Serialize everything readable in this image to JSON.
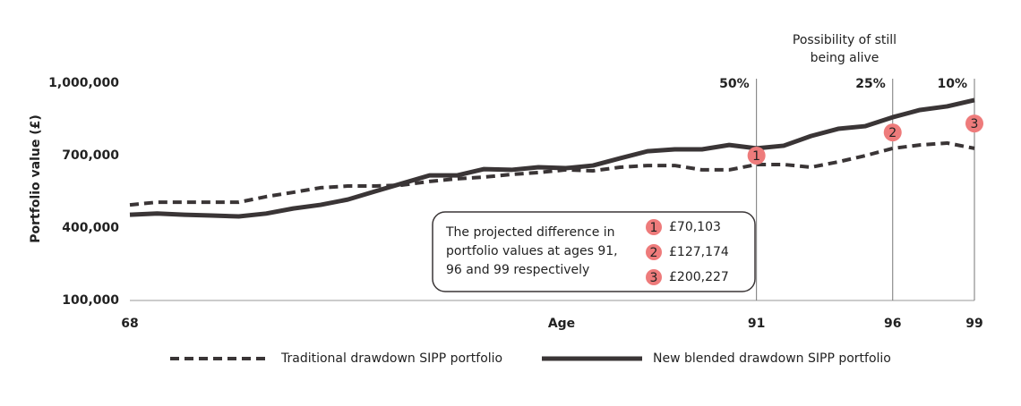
{
  "chart_data": {
    "type": "line",
    "y_label": "Portfolio value (£)",
    "x_label": "Age",
    "x": [
      68,
      69,
      70,
      71,
      72,
      73,
      74,
      75,
      76,
      77,
      78,
      79,
      80,
      81,
      82,
      83,
      84,
      85,
      86,
      87,
      88,
      89,
      90,
      91,
      92,
      93,
      94,
      95,
      96,
      97,
      98,
      99
    ],
    "xlim": [
      68,
      99
    ],
    "xticks": [
      68,
      91,
      96,
      99
    ],
    "ylim": [
      100000,
      1000000
    ],
    "yticks": [
      {
        "value": 100000,
        "label": "100,000"
      },
      {
        "value": 400000,
        "label": "400,000"
      },
      {
        "value": 700000,
        "label": "700,000"
      },
      {
        "value": 1000000,
        "label": "1,000,000"
      }
    ],
    "series": [
      {
        "name": "Traditional drawdown SIPP portfolio",
        "color": "#3a3536",
        "dashed": true,
        "values": [
          496000,
          507000,
          507000,
          507000,
          507000,
          530000,
          548000,
          567000,
          574000,
          574000,
          578000,
          593000,
          604000,
          611000,
          622000,
          630000,
          641000,
          637000,
          652000,
          659000,
          659000,
          641000,
          641000,
          663000,
          663000,
          652000,
          674000,
          700000,
          730000,
          744000,
          752000,
          730000
        ]
      },
      {
        "name": "New blended drawdown SIPP portfolio",
        "color": "#3a3536",
        "dashed": false,
        "values": [
          455000,
          460000,
          455000,
          452000,
          448000,
          460000,
          481000,
          496000,
          518000,
          552000,
          585000,
          618000,
          618000,
          644000,
          641000,
          652000,
          648000,
          659000,
          689000,
          718000,
          726000,
          726000,
          744000,
          730000,
          741000,
          781000,
          811000,
          822000,
          859000,
          889000,
          904000,
          930000
        ]
      }
    ],
    "survival_title": [
      "Possibility of still",
      "being alive"
    ],
    "survival": [
      {
        "age": 91,
        "label": "50%"
      },
      {
        "age": 96,
        "label": "25%"
      },
      {
        "age": 99,
        "label": "10%"
      }
    ],
    "marker_color": "#ee7b7b",
    "markers": [
      {
        "label": "1",
        "age": 91,
        "value": 700000,
        "amount": "£70,103"
      },
      {
        "label": "2",
        "age": 96,
        "value": 796000,
        "amount": "£127,174"
      },
      {
        "label": "3",
        "age": 99,
        "value": 833000,
        "amount": "£200,227"
      }
    ],
    "box_text": [
      "The projected difference in",
      "portfolio values at ages 91,",
      "96 and 99 respectively"
    ]
  }
}
